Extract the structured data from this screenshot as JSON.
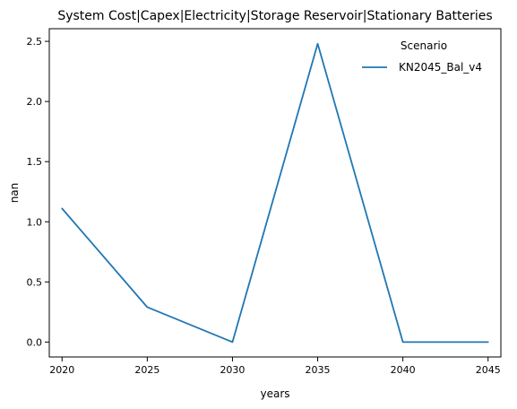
{
  "chart_data": {
    "type": "line",
    "title": "System Cost|Capex|Electricity|Storage Reservoir|Stationary Batteries",
    "xlabel": "years",
    "ylabel": "nan",
    "x": [
      2020,
      2025,
      2030,
      2035,
      2040,
      2045
    ],
    "xlim": [
      2019.25,
      2045.75
    ],
    "ylim": [
      -0.124,
      2.605
    ],
    "x_ticks": [
      "2020",
      "2025",
      "2030",
      "2035",
      "2040",
      "2045"
    ],
    "y_ticks": [
      "0.0",
      "0.5",
      "1.0",
      "1.5",
      "2.0",
      "2.5"
    ],
    "series": [
      {
        "name": "KN2045_Bal_v4",
        "color": "#1f77b4",
        "values": [
          1.11,
          0.29,
          0.0,
          2.48,
          0.0,
          0.0
        ]
      }
    ],
    "legend": {
      "title": "Scenario",
      "placement": "top-right"
    },
    "grid": false
  }
}
